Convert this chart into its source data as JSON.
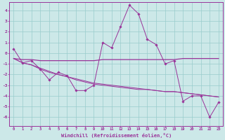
{
  "xlabel": "Windchill (Refroidissement éolien,°C)",
  "background_color": "#cce8e8",
  "line_color": "#993399",
  "grid_color": "#99cccc",
  "hours": [
    0,
    1,
    2,
    3,
    4,
    5,
    6,
    7,
    8,
    9,
    10,
    11,
    12,
    13,
    14,
    15,
    16,
    17,
    18,
    19,
    20,
    21,
    22,
    23
  ],
  "line_data": [
    0.4,
    -0.9,
    -0.7,
    -1.5,
    -2.5,
    -1.8,
    -2.1,
    -3.5,
    -3.5,
    -3.0,
    1.0,
    0.5,
    2.5,
    4.5,
    3.7,
    1.3,
    0.8,
    -1.0,
    -0.7,
    -4.5,
    -4.0,
    -4.0,
    -6.0,
    -4.6
  ],
  "line_flat": [
    -0.5,
    -0.6,
    -0.6,
    -0.7,
    -0.7,
    -0.7,
    -0.7,
    -0.7,
    -0.7,
    -0.7,
    -0.6,
    -0.6,
    -0.6,
    -0.6,
    -0.6,
    -0.6,
    -0.6,
    -0.6,
    -0.6,
    -0.5,
    -0.5,
    -0.5,
    -0.5,
    -0.5
  ],
  "line_slope1": [
    -0.5,
    -0.9,
    -1.1,
    -1.5,
    -1.8,
    -2.0,
    -2.2,
    -2.5,
    -2.7,
    -2.9,
    -3.0,
    -3.1,
    -3.2,
    -3.3,
    -3.4,
    -3.4,
    -3.5,
    -3.6,
    -3.6,
    -3.7,
    -3.8,
    -3.9,
    -4.0,
    -4.1
  ],
  "line_slope2": [
    -0.5,
    -0.9,
    -1.1,
    -1.4,
    -1.7,
    -2.0,
    -2.2,
    -2.4,
    -2.6,
    -2.8,
    -2.9,
    -3.0,
    -3.1,
    -3.2,
    -3.3,
    -3.4,
    -3.5,
    -3.6,
    -3.6,
    -3.7,
    -3.8,
    -3.9,
    -4.0,
    -4.1
  ],
  "ylim": [
    -6.8,
    4.8
  ],
  "yticks": [
    -6,
    -5,
    -4,
    -3,
    -2,
    -1,
    0,
    1,
    2,
    3,
    4
  ],
  "xlim": [
    -0.5,
    23.5
  ]
}
